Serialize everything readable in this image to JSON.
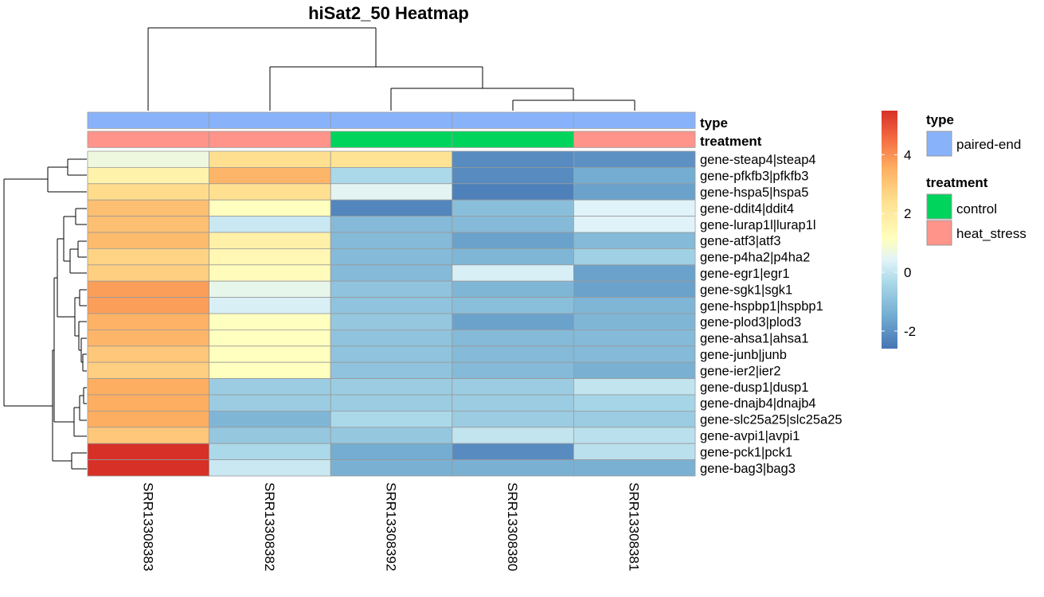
{
  "chart_data": {
    "type": "heatmap",
    "title": "hiSat2_50 Heatmap",
    "columns": [
      "SRR13308383",
      "SRR13308382",
      "SRR13308392",
      "SRR13308380",
      "SRR13308381"
    ],
    "rows": [
      "gene-steap4|steap4",
      "gene-pfkfb3|pfkfb3",
      "gene-hspa5|hspa5",
      "gene-ddit4|ddit4",
      "gene-lurap1l|lurap1l",
      "gene-atf3|atf3",
      "gene-p4ha2|p4ha2",
      "gene-egr1|egr1",
      "gene-sgk1|sgk1",
      "gene-hspbp1|hspbp1",
      "gene-plod3|plod3",
      "gene-ahsa1|ahsa1",
      "gene-junb|junb",
      "gene-ier2|ier2",
      "gene-dusp1|dusp1",
      "gene-dnajb4|dnajb4",
      "gene-slc25a25|slc25a25",
      "gene-avpi1|avpi1",
      "gene-pck1|pck1",
      "gene-bag3|bag3"
    ],
    "values": [
      [
        0.5,
        2.2,
        2.1,
        -2.2,
        -2.1
      ],
      [
        1.5,
        3.2,
        -0.6,
        -2.2,
        -1.6
      ],
      [
        2.3,
        2.2,
        0.2,
        -2.4,
        -1.8
      ],
      [
        3.0,
        1.0,
        -2.3,
        -1.2,
        0.1
      ],
      [
        3.0,
        -0.2,
        -1.3,
        -1.3,
        0.1
      ],
      [
        3.1,
        1.6,
        -1.3,
        -1.8,
        -1.3
      ],
      [
        2.5,
        1.3,
        -1.3,
        -1.4,
        -0.8
      ],
      [
        2.6,
        1.1,
        -1.3,
        0.0,
        -1.8
      ],
      [
        3.7,
        0.3,
        -1.1,
        -1.4,
        -1.8
      ],
      [
        3.7,
        0.0,
        -1.1,
        -1.2,
        -1.4
      ],
      [
        3.3,
        1.0,
        -1.0,
        -1.8,
        -1.4
      ],
      [
        3.2,
        1.0,
        -1.1,
        -1.3,
        -1.3
      ],
      [
        2.8,
        1.0,
        -1.1,
        -1.3,
        -1.3
      ],
      [
        2.6,
        1.0,
        -1.1,
        -1.3,
        -1.5
      ],
      [
        3.4,
        -0.9,
        -0.9,
        -0.9,
        -0.3
      ],
      [
        3.4,
        -0.9,
        -0.9,
        -0.9,
        -0.7
      ],
      [
        3.4,
        -1.4,
        -0.6,
        -0.9,
        -0.9
      ],
      [
        2.8,
        -1.0,
        -1.0,
        -0.3,
        -0.4
      ],
      [
        5.5,
        -0.6,
        -1.6,
        -2.2,
        -0.4
      ],
      [
        5.5,
        -0.2,
        -1.5,
        -1.5,
        -1.5
      ]
    ],
    "annotations": {
      "type": [
        "paired-end",
        "paired-end",
        "paired-end",
        "paired-end",
        "paired-end"
      ],
      "treatment": [
        "heat_stress",
        "heat_stress",
        "control",
        "control",
        "heat_stress"
      ]
    },
    "annotation_labels": [
      "type",
      "treatment"
    ],
    "colorbar": {
      "ticks": [
        4,
        2,
        0,
        -2
      ],
      "tick_labels": [
        "4",
        "2",
        "0",
        "-2"
      ]
    },
    "legend": {
      "type": {
        "title": "type",
        "items": [
          {
            "label": "paired-end",
            "color": "#88B3FB"
          }
        ]
      },
      "treatment": {
        "title": "treatment",
        "items": [
          {
            "label": "control",
            "color": "#00D45D"
          },
          {
            "label": "heat_stress",
            "color": "#FF948A"
          }
        ]
      }
    },
    "colors": {
      "low": "#4575B4",
      "mid": "#FFFFBF",
      "high": "#D73027",
      "paired_end": "#88B3FB",
      "control": "#00D45D",
      "heat_stress": "#FF948A"
    }
  }
}
